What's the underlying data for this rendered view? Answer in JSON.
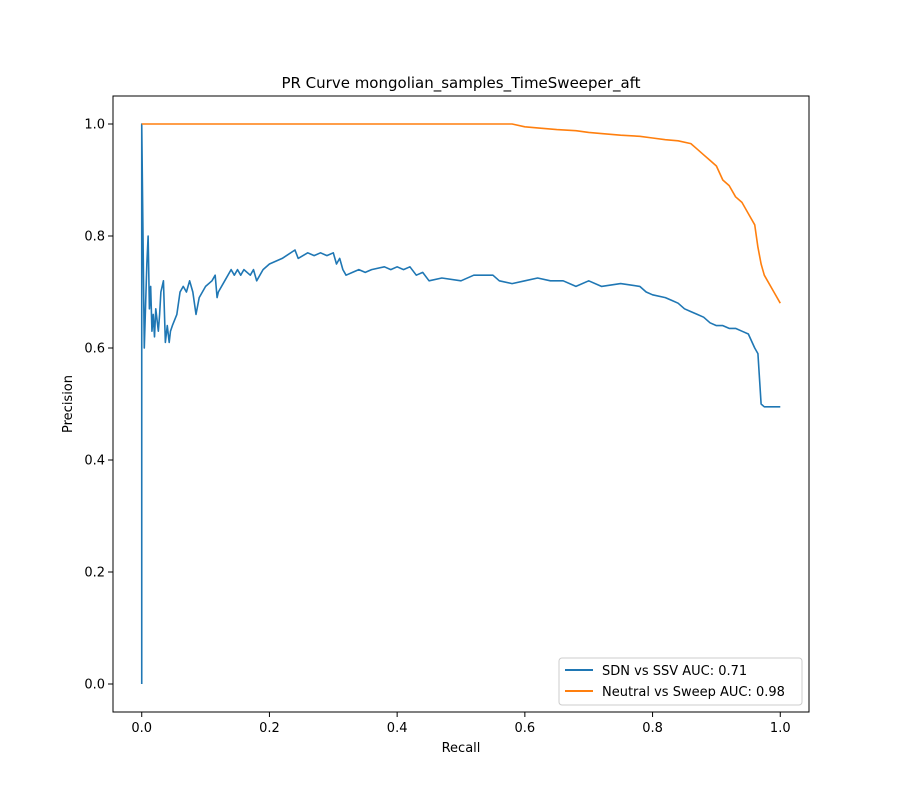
{
  "chart_data": {
    "type": "line",
    "title": "PR Curve mongolian_samples_TimeSweeper_aft",
    "xlabel": "Recall",
    "ylabel": "Precision",
    "xlim": [
      -0.045,
      1.045
    ],
    "ylim": [
      -0.05,
      1.05
    ],
    "xticks": [
      0.0,
      0.2,
      0.4,
      0.6,
      0.8,
      1.0
    ],
    "yticks": [
      0.0,
      0.2,
      0.4,
      0.6,
      0.8,
      1.0
    ],
    "xtick_labels": [
      "0.0",
      "0.2",
      "0.4",
      "0.6",
      "0.8",
      "1.0"
    ],
    "ytick_labels": [
      "0.0",
      "0.2",
      "0.4",
      "0.6",
      "0.8",
      "1.0"
    ],
    "grid": false,
    "legend_position": "lower-right",
    "series": [
      {
        "name": "SDN vs SSV AUC: 0.71",
        "color": "#1f77b4",
        "x": [
          0.0,
          0.0,
          0.004,
          0.008,
          0.01,
          0.012,
          0.014,
          0.016,
          0.018,
          0.02,
          0.022,
          0.024,
          0.026,
          0.028,
          0.03,
          0.034,
          0.037,
          0.04,
          0.043,
          0.045,
          0.048,
          0.055,
          0.06,
          0.065,
          0.07,
          0.075,
          0.08,
          0.085,
          0.09,
          0.1,
          0.11,
          0.115,
          0.118,
          0.12,
          0.13,
          0.14,
          0.145,
          0.15,
          0.155,
          0.16,
          0.17,
          0.175,
          0.18,
          0.19,
          0.2,
          0.22,
          0.24,
          0.245,
          0.26,
          0.27,
          0.28,
          0.29,
          0.3,
          0.305,
          0.31,
          0.315,
          0.32,
          0.33,
          0.34,
          0.35,
          0.36,
          0.38,
          0.39,
          0.4,
          0.41,
          0.42,
          0.43,
          0.44,
          0.45,
          0.47,
          0.5,
          0.52,
          0.55,
          0.56,
          0.58,
          0.6,
          0.62,
          0.64,
          0.66,
          0.68,
          0.7,
          0.72,
          0.75,
          0.78,
          0.79,
          0.8,
          0.82,
          0.83,
          0.84,
          0.85,
          0.86,
          0.87,
          0.88,
          0.89,
          0.9,
          0.91,
          0.92,
          0.93,
          0.94,
          0.95,
          0.96,
          0.965,
          0.97,
          0.975,
          0.98,
          1.0
        ],
        "y": [
          0.0,
          1.0,
          0.6,
          0.75,
          0.8,
          0.67,
          0.71,
          0.63,
          0.66,
          0.62,
          0.67,
          0.65,
          0.63,
          0.66,
          0.7,
          0.72,
          0.61,
          0.64,
          0.61,
          0.63,
          0.64,
          0.66,
          0.7,
          0.71,
          0.7,
          0.72,
          0.7,
          0.66,
          0.69,
          0.71,
          0.72,
          0.73,
          0.69,
          0.7,
          0.72,
          0.74,
          0.73,
          0.74,
          0.73,
          0.74,
          0.73,
          0.74,
          0.72,
          0.74,
          0.75,
          0.76,
          0.775,
          0.76,
          0.77,
          0.765,
          0.77,
          0.765,
          0.77,
          0.75,
          0.76,
          0.74,
          0.73,
          0.735,
          0.74,
          0.735,
          0.74,
          0.745,
          0.74,
          0.745,
          0.74,
          0.745,
          0.73,
          0.735,
          0.72,
          0.725,
          0.72,
          0.73,
          0.73,
          0.72,
          0.715,
          0.72,
          0.725,
          0.72,
          0.72,
          0.71,
          0.72,
          0.71,
          0.715,
          0.71,
          0.7,
          0.695,
          0.69,
          0.685,
          0.68,
          0.67,
          0.665,
          0.66,
          0.655,
          0.645,
          0.64,
          0.64,
          0.635,
          0.635,
          0.63,
          0.625,
          0.6,
          0.59,
          0.5,
          0.495,
          0.495,
          0.495
        ]
      },
      {
        "name": "Neutral vs Sweep AUC: 0.98",
        "color": "#ff7f0e",
        "x": [
          0.0,
          0.0,
          0.1,
          0.2,
          0.3,
          0.4,
          0.5,
          0.58,
          0.6,
          0.62,
          0.65,
          0.68,
          0.7,
          0.72,
          0.75,
          0.78,
          0.8,
          0.82,
          0.84,
          0.86,
          0.87,
          0.88,
          0.89,
          0.9,
          0.91,
          0.92,
          0.93,
          0.94,
          0.95,
          0.96,
          0.965,
          0.97,
          0.975,
          0.98,
          0.99,
          1.0
        ],
        "y": [
          1.0,
          1.0,
          1.0,
          1.0,
          1.0,
          1.0,
          1.0,
          1.0,
          0.995,
          0.993,
          0.99,
          0.988,
          0.985,
          0.983,
          0.98,
          0.978,
          0.975,
          0.972,
          0.97,
          0.965,
          0.955,
          0.945,
          0.935,
          0.925,
          0.9,
          0.89,
          0.87,
          0.86,
          0.84,
          0.82,
          0.78,
          0.75,
          0.73,
          0.72,
          0.7,
          0.68
        ]
      }
    ]
  }
}
